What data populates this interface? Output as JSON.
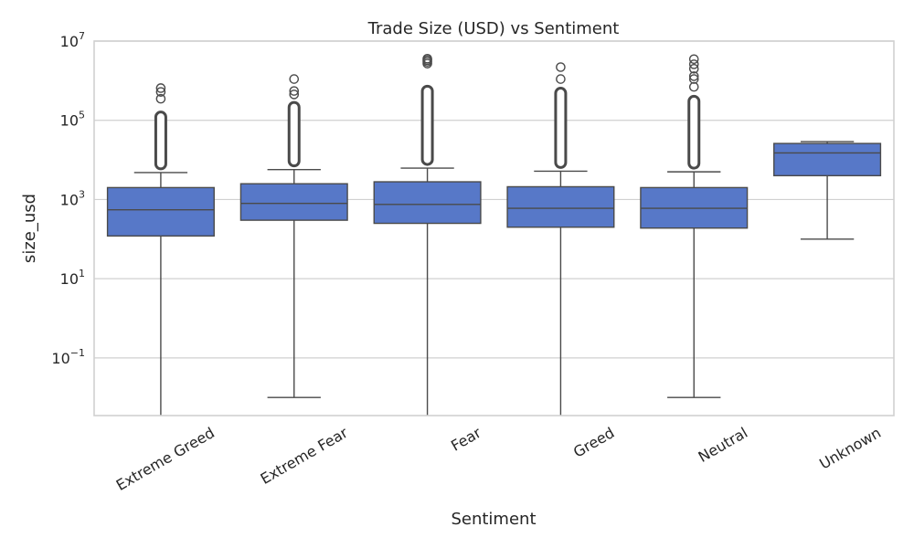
{
  "chart_data": {
    "type": "box",
    "title": "Trade Size (USD) vs Sentiment",
    "xlabel": "Sentiment",
    "ylabel": "size_usd",
    "yscale": "log",
    "ylim": [
      0.0035,
      10000000
    ],
    "yticks": [
      {
        "value": 0.1,
        "base": "10",
        "exp": "−1"
      },
      {
        "value": 10,
        "base": "10",
        "exp": "1"
      },
      {
        "value": 1000,
        "base": "10",
        "exp": "3"
      },
      {
        "value": 100000,
        "base": "10",
        "exp": "5"
      },
      {
        "value": 10000000,
        "base": "10",
        "exp": "7"
      }
    ],
    "grid": true,
    "box_color": "#5778c8",
    "line_color": "#4a4a4a",
    "categories": [
      "Extreme Greed",
      "Extreme Fear",
      "Fear",
      "Greed",
      "Neutral",
      "Unknown"
    ],
    "boxes": [
      {
        "category": "Extreme Greed",
        "whisker_low": 0.0035,
        "q1": 120,
        "median": 550,
        "q3": 2000,
        "whisker_high": 4800,
        "outlier_range": [
          4800,
          200000
        ],
        "outliers": [
          350000,
          520000,
          650000
        ]
      },
      {
        "category": "Extreme Fear",
        "whisker_low": 0.01,
        "q1": 300,
        "median": 800,
        "q3": 2500,
        "whisker_high": 5700,
        "outlier_range": [
          5700,
          350000
        ],
        "outliers": [
          450000,
          550000,
          1100000
        ]
      },
      {
        "category": "Fear",
        "whisker_low": 0.0035,
        "q1": 250,
        "median": 750,
        "q3": 2800,
        "whisker_high": 6200,
        "outlier_range": [
          6200,
          900000
        ],
        "outliers": [
          2700000,
          3000000,
          3300000,
          3600000
        ]
      },
      {
        "category": "Greed",
        "whisker_low": 0.0035,
        "q1": 200,
        "median": 600,
        "q3": 2100,
        "whisker_high": 5200,
        "outlier_range": [
          5200,
          800000
        ],
        "outliers": [
          1100000,
          2200000
        ]
      },
      {
        "category": "Neutral",
        "whisker_low": 0.01,
        "q1": 190,
        "median": 600,
        "q3": 2000,
        "whisker_high": 5000,
        "outlier_range": [
          5000,
          500000
        ],
        "outliers": [
          700000,
          1100000,
          1300000,
          2000000,
          2600000,
          3500000
        ]
      },
      {
        "category": "Unknown",
        "whisker_low": 100,
        "q1": 4000,
        "median": 15000,
        "q3": 26000,
        "whisker_high": 29000,
        "outlier_range": null,
        "outliers": []
      }
    ]
  }
}
